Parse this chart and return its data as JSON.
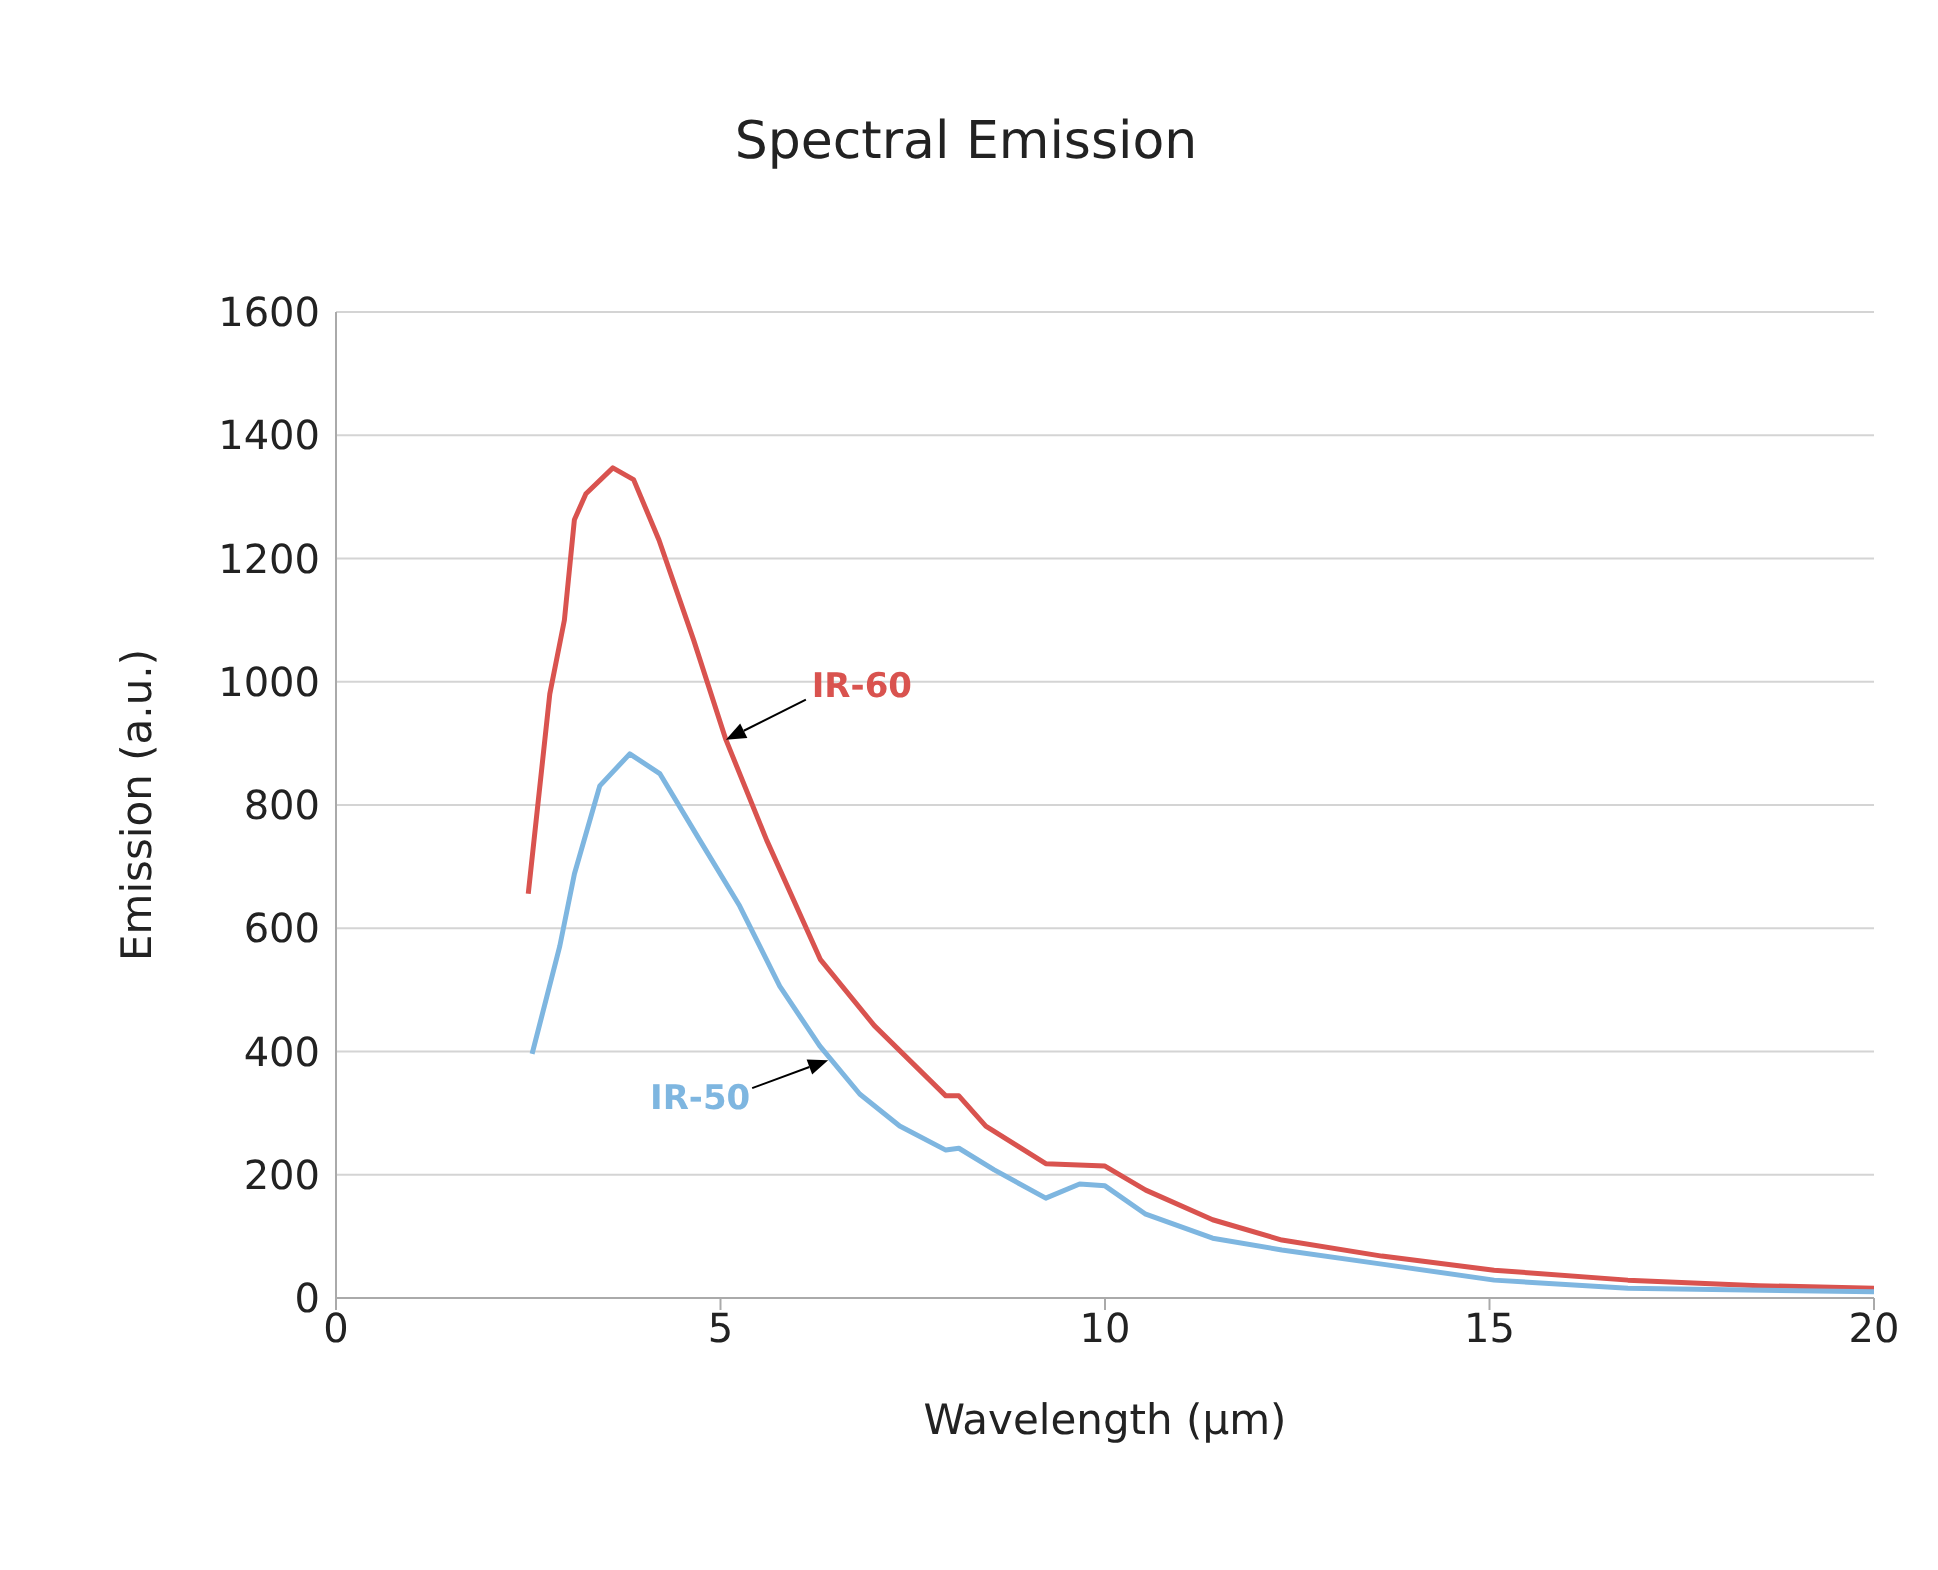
{
  "chart_data": {
    "type": "line",
    "title": "Spectral Emission",
    "xlabel": "Wavelength (µm)",
    "ylabel": "Emission (a.u.)",
    "xlim": [
      0,
      20
    ],
    "xticks": [
      0,
      5,
      10,
      15,
      20
    ],
    "ylim": [
      0,
      1600
    ],
    "yticks": [
      0,
      200,
      400,
      600,
      800,
      1000,
      1200,
      1400,
      1600
    ],
    "grid": "y",
    "marker": "none",
    "line_style": "solid",
    "series": [
      {
        "color": "#d9534f",
        "x": [
          2.5,
          2.78,
          2.97,
          3.1,
          3.25,
          3.6,
          3.87,
          4.2,
          4.65,
          5.07,
          5.6,
          6.3,
          7.0,
          7.93,
          8.1,
          8.45,
          9.23,
          10.0,
          10.53,
          11.4,
          12.3,
          13.6,
          15.06,
          16.8,
          18.5,
          20
        ],
        "values": [
          656,
          980,
          1100,
          1263,
          1305,
          1347,
          1328,
          1230,
          1068,
          906,
          743,
          549,
          442,
          328,
          328,
          279,
          218,
          214,
          175,
          127,
          94,
          68,
          45,
          29,
          20,
          16
        ]
      },
      {
        "color": "#7eb6e0",
        "x": [
          2.55,
          2.91,
          3.1,
          3.43,
          3.82,
          4.21,
          4.73,
          5.25,
          5.77,
          6.29,
          6.81,
          7.33,
          7.93,
          8.1,
          8.56,
          9.23,
          9.67,
          10.0,
          10.53,
          11.4,
          12.3,
          13.6,
          15.06,
          16.8,
          20
        ],
        "values": [
          396,
          571,
          688,
          831,
          883,
          851,
          743,
          636,
          506,
          409,
          331,
          279,
          240,
          243,
          208,
          162,
          185,
          182,
          136,
          97,
          78,
          55,
          29,
          16,
          10
        ]
      }
    ],
    "annotations": [
      {
        "text": "IR-60",
        "x": 5.07,
        "y": 906
      },
      {
        "text": "IR-50",
        "x": 6.4,
        "y": 386
      }
    ]
  }
}
